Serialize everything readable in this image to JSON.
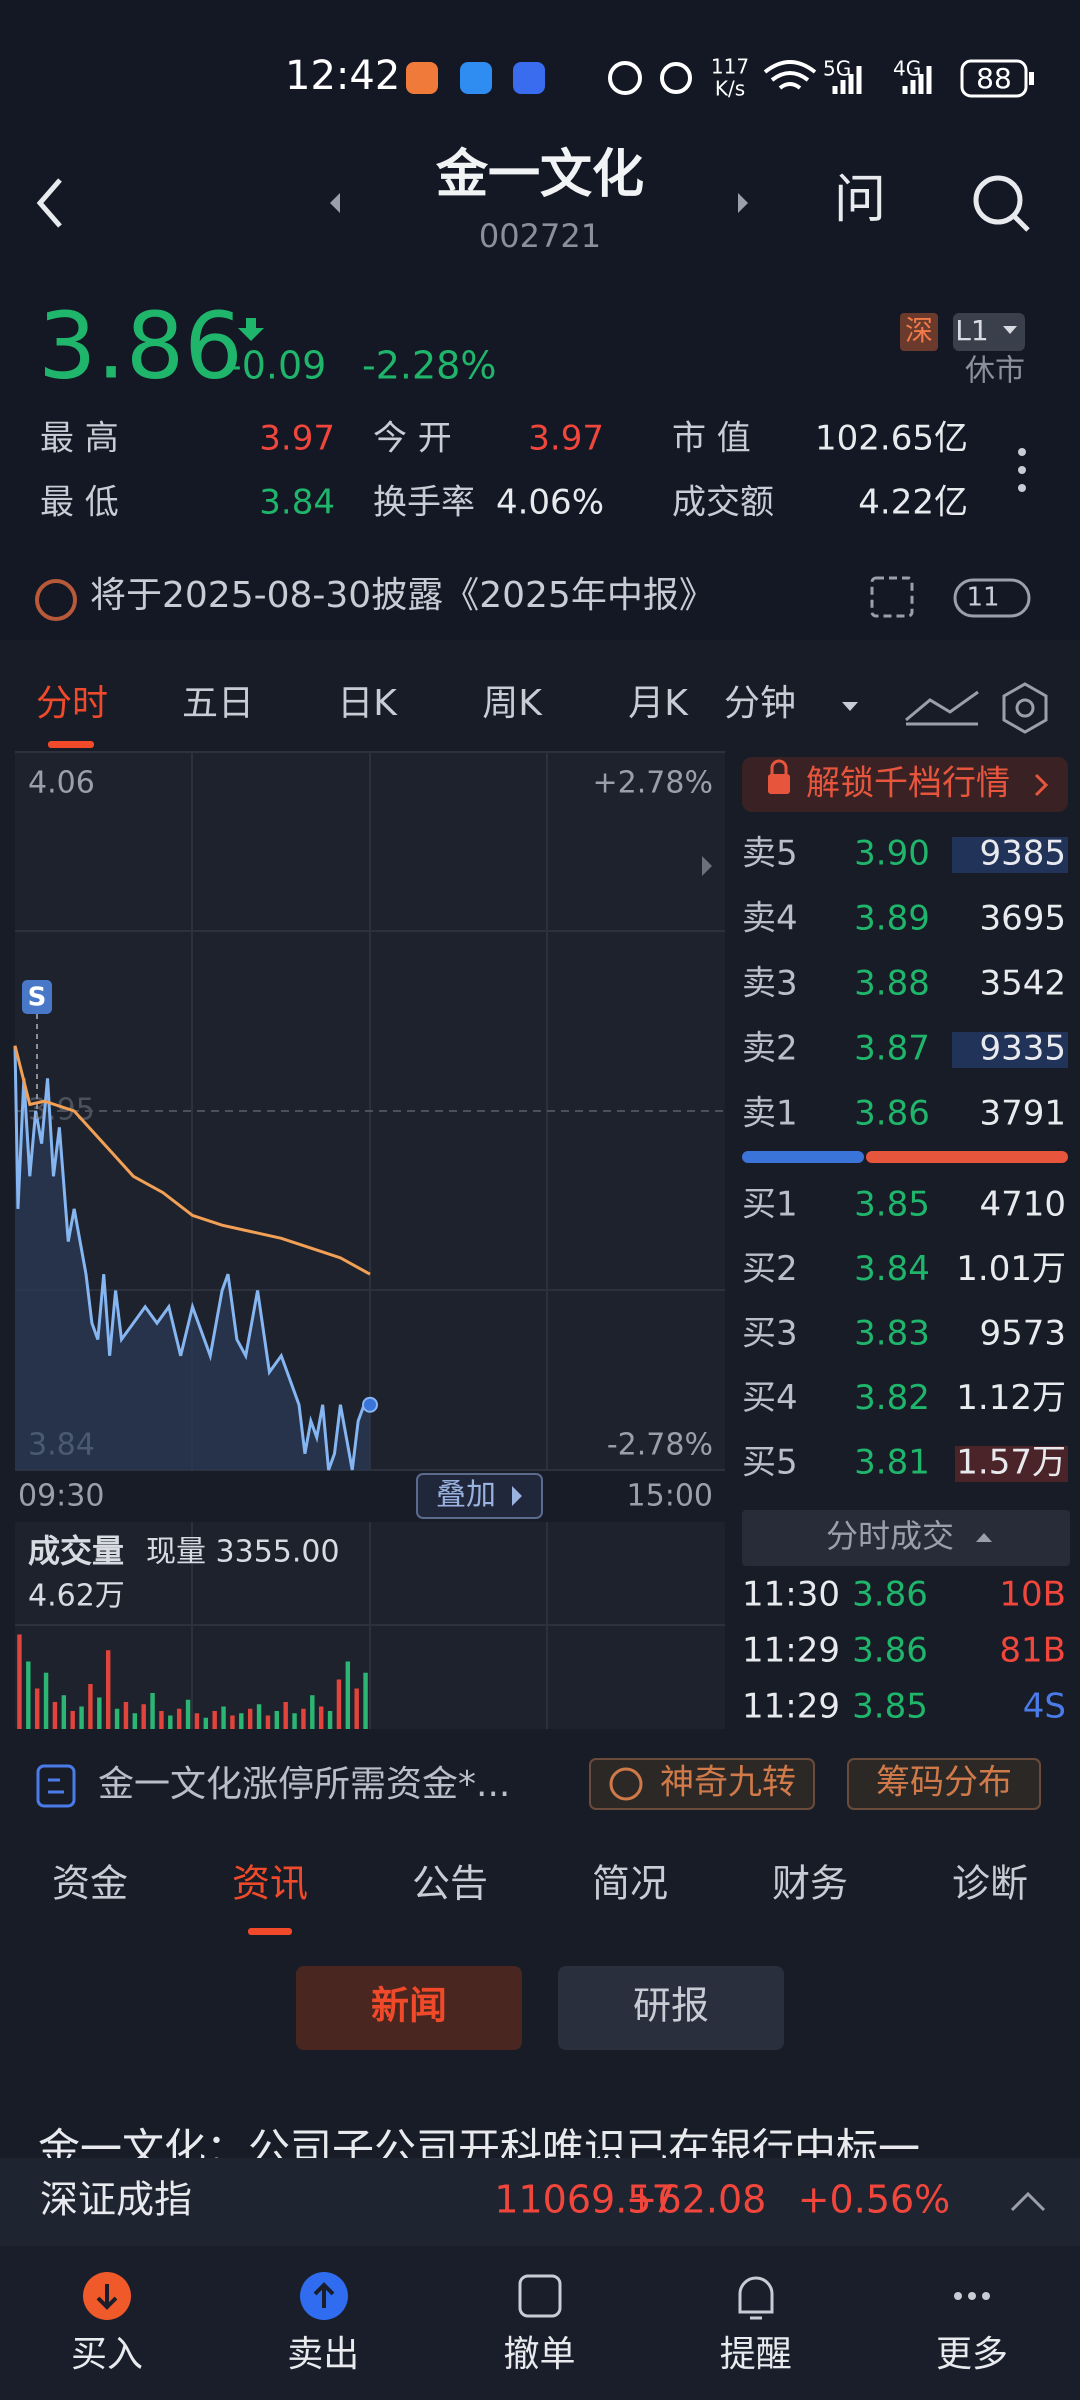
{
  "status_bar": {
    "time": "12:42",
    "speed": "117",
    "speed_unit": "K/s",
    "net1": "5G",
    "net2": "4G",
    "battery": "88"
  },
  "header": {
    "title": "金一文化",
    "code": "002721",
    "ask": "问"
  },
  "quote": {
    "price": "3.86",
    "change": "-0.09",
    "change_pct": "-2.28%",
    "exchange": "深",
    "level": "L1",
    "status": "休市"
  },
  "stats": [
    [
      "最 高",
      "3.97",
      "今 开",
      "3.97",
      "市 值",
      "102.65亿"
    ],
    [
      "最 低",
      "3.84",
      "换手率",
      "4.06%",
      "成交额",
      "4.22亿"
    ]
  ],
  "notice": {
    "text": "将于2025-08-30披露《2025年中报》",
    "badge": "11"
  },
  "chart_tabs": [
    "分时",
    "五日",
    "日K",
    "周K",
    "月K",
    "分钟"
  ],
  "intraday": {
    "type": "line",
    "xlim": [
      "09:30",
      "15:00"
    ],
    "ylim": [
      3.84,
      4.06
    ],
    "yticks": [
      4.06,
      3.95,
      3.84
    ],
    "pct_labels": [
      "+2.78%",
      "-2.78%"
    ],
    "signal": "S",
    "overlay_button": "叠加",
    "price": {
      "color": "#86b6f2",
      "x": [
        "09:30",
        "09:31",
        "09:33",
        "09:35",
        "09:37",
        "09:39",
        "09:41",
        "09:43",
        "09:45",
        "09:48",
        "09:50",
        "09:52",
        "09:54",
        "09:56",
        "09:58",
        "10:00",
        "10:02",
        "10:04",
        "10:06",
        "10:10",
        "10:14",
        "10:18",
        "10:22",
        "10:26",
        "10:30",
        "10:34",
        "10:36",
        "10:40",
        "10:42",
        "10:45",
        "10:48",
        "10:52",
        "10:56",
        "11:00",
        "11:04",
        "11:06",
        "11:08",
        "11:10",
        "11:12",
        "11:14",
        "11:16",
        "11:18",
        "11:20",
        "11:22",
        "11:24",
        "11:26",
        "11:28",
        "11:30"
      ],
      "values": [
        3.97,
        3.92,
        3.96,
        3.93,
        3.95,
        3.94,
        3.96,
        3.93,
        3.945,
        3.91,
        3.92,
        3.91,
        3.9,
        3.885,
        3.88,
        3.9,
        3.875,
        3.895,
        3.88,
        3.885,
        3.89,
        3.885,
        3.89,
        3.875,
        3.89,
        3.88,
        3.875,
        3.895,
        3.9,
        3.88,
        3.875,
        3.895,
        3.87,
        3.875,
        3.865,
        3.86,
        3.845,
        3.855,
        3.85,
        3.86,
        3.84,
        3.845,
        3.86,
        3.85,
        3.84,
        3.855,
        3.86,
        3.86
      ]
    },
    "average": {
      "color": "#f2a055",
      "x": [
        "09:30",
        "09:35",
        "09:40",
        "09:50",
        "10:00",
        "10:10",
        "10:20",
        "10:30",
        "10:40",
        "10:50",
        "11:00",
        "11:10",
        "11:20",
        "11:30"
      ],
      "values": [
        3.97,
        3.952,
        3.953,
        3.95,
        3.94,
        3.93,
        3.925,
        3.918,
        3.915,
        3.913,
        3.911,
        3.908,
        3.905,
        3.9
      ]
    }
  },
  "volume": {
    "type": "bar",
    "title": "成交量",
    "current": "现量 3355.00",
    "ylim": [
      0,
      46200
    ],
    "yticks": [
      {
        "value": 46200,
        "label": "4.62万"
      }
    ],
    "x": [
      "09:30",
      "09:33",
      "09:36",
      "09:39",
      "09:42",
      "09:45",
      "09:48",
      "09:51",
      "09:54",
      "09:57",
      "10:00",
      "10:03",
      "10:06",
      "10:09",
      "10:12",
      "10:15",
      "10:18",
      "10:21",
      "10:24",
      "10:27",
      "10:30",
      "10:33",
      "10:36",
      "10:39",
      "10:42",
      "10:45",
      "10:48",
      "10:51",
      "10:54",
      "10:57",
      "11:00",
      "11:03",
      "11:06",
      "11:09",
      "11:12",
      "11:15",
      "11:18",
      "11:21",
      "11:24",
      "11:27"
    ],
    "values": [
      42000,
      30000,
      18000,
      25000,
      12000,
      15000,
      8000,
      10000,
      20000,
      14000,
      35000,
      9000,
      12000,
      7000,
      11000,
      16000,
      8000,
      6000,
      9000,
      13000,
      7000,
      5000,
      8000,
      10000,
      6000,
      7000,
      9000,
      11000,
      6000,
      8000,
      12000,
      7000,
      9000,
      15000,
      10000,
      8000,
      22000,
      30000,
      18000,
      25000
    ],
    "colors": [
      "#e0443a",
      "#2bb673",
      "#e0443a",
      "#2bb673",
      "#e0443a",
      "#2bb673",
      "#e0443a",
      "#2bb673",
      "#e0443a",
      "#2bb673",
      "#e0443a",
      "#2bb673",
      "#e0443a",
      "#2bb673",
      "#e0443a",
      "#2bb673",
      "#e0443a",
      "#2bb673",
      "#e0443a",
      "#2bb673",
      "#e0443a",
      "#2bb673",
      "#e0443a",
      "#2bb673",
      "#e0443a",
      "#2bb673",
      "#e0443a",
      "#2bb673",
      "#e0443a",
      "#2bb673",
      "#e0443a",
      "#2bb673",
      "#e0443a",
      "#2bb673",
      "#e0443a",
      "#2bb673",
      "#e0443a",
      "#2bb673",
      "#e0443a",
      "#2bb673"
    ]
  },
  "order_book": {
    "unlock": "解锁千档行情",
    "asks": [
      {
        "label": "卖5",
        "price": "3.90",
        "volume": "9385"
      },
      {
        "label": "卖4",
        "price": "3.89",
        "volume": "3695"
      },
      {
        "label": "卖3",
        "price": "3.88",
        "volume": "3542"
      },
      {
        "label": "卖2",
        "price": "3.87",
        "volume": "9335"
      },
      {
        "label": "卖1",
        "price": "3.86",
        "volume": "3791"
      }
    ],
    "bids": [
      {
        "label": "买1",
        "price": "3.85",
        "volume": "4710"
      },
      {
        "label": "买2",
        "price": "3.84",
        "volume": "1.01万"
      },
      {
        "label": "买3",
        "price": "3.83",
        "volume": "9573"
      },
      {
        "label": "买4",
        "price": "3.82",
        "volume": "1.12万"
      },
      {
        "label": "买5",
        "price": "3.81",
        "volume": "1.57万"
      }
    ]
  },
  "trades": {
    "title": "分时成交",
    "rows": [
      {
        "time": "11:30",
        "price": "3.86",
        "volume": "10B",
        "color": "#f0463c"
      },
      {
        "time": "11:29",
        "price": "3.86",
        "volume": "81B",
        "color": "#f0463c"
      },
      {
        "time": "11:29",
        "price": "3.85",
        "volume": "4S",
        "color": "#4a7be8"
      }
    ]
  },
  "news_strip": {
    "text": "金一文化涨停所需资金*...",
    "buttons": [
      "神奇九转",
      "筹码分布"
    ]
  },
  "section_tabs": [
    "资金",
    "资讯",
    "公告",
    "简况",
    "财务",
    "诊断"
  ],
  "sub_tabs": [
    "新闻",
    "研报"
  ],
  "headline": "金一文化：公司子公司开科唯识已在银行中标一",
  "index_bar": {
    "name": "深证成指",
    "value": "11069.57",
    "change": "+62.08",
    "change_pct": "+0.56%"
  },
  "bottom_nav": [
    "买入",
    "卖出",
    "撤单",
    "提醒",
    "更多"
  ]
}
